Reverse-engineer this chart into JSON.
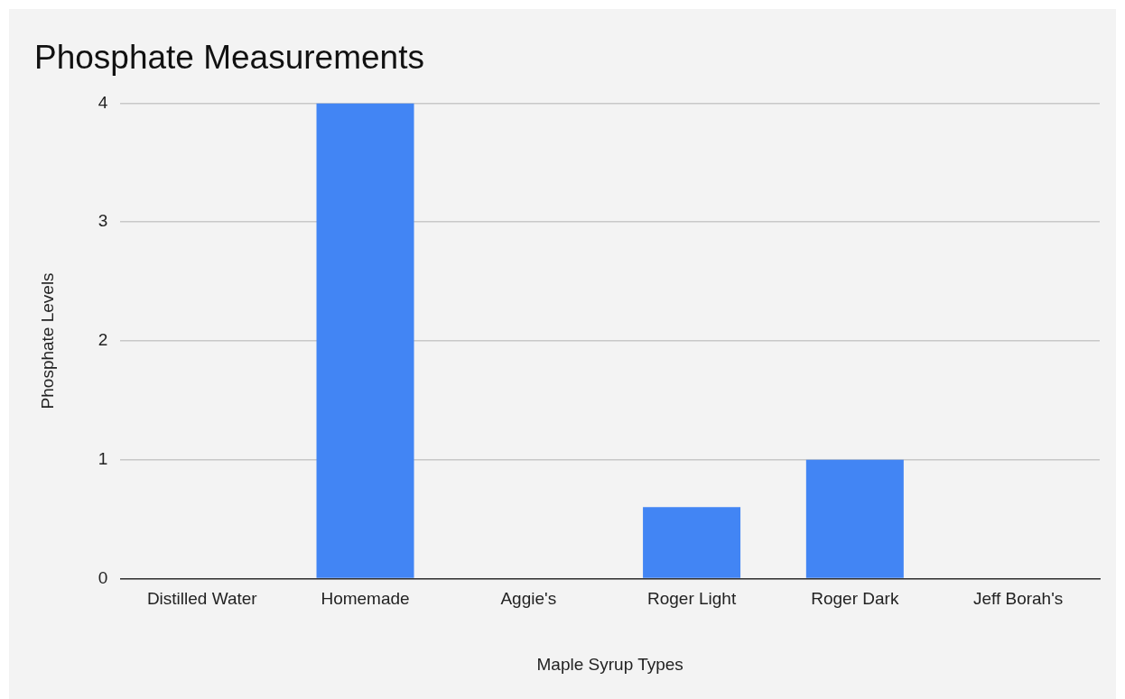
{
  "chart_data": {
    "type": "bar",
    "title": "Phosphate Measurements",
    "xlabel": "Maple Syrup Types",
    "ylabel": "Phosphate Levels",
    "categories": [
      "Distilled Water",
      "Homemade",
      "Aggie's",
      "Roger Light",
      "Roger Dark",
      "Jeff Borah's"
    ],
    "values": [
      0,
      4,
      0,
      0.6,
      1,
      0
    ],
    "color": "#4285f4",
    "ylim": [
      0,
      4
    ],
    "yticks": [
      0,
      1,
      2,
      3,
      4
    ],
    "grid": "y",
    "legend": false
  }
}
